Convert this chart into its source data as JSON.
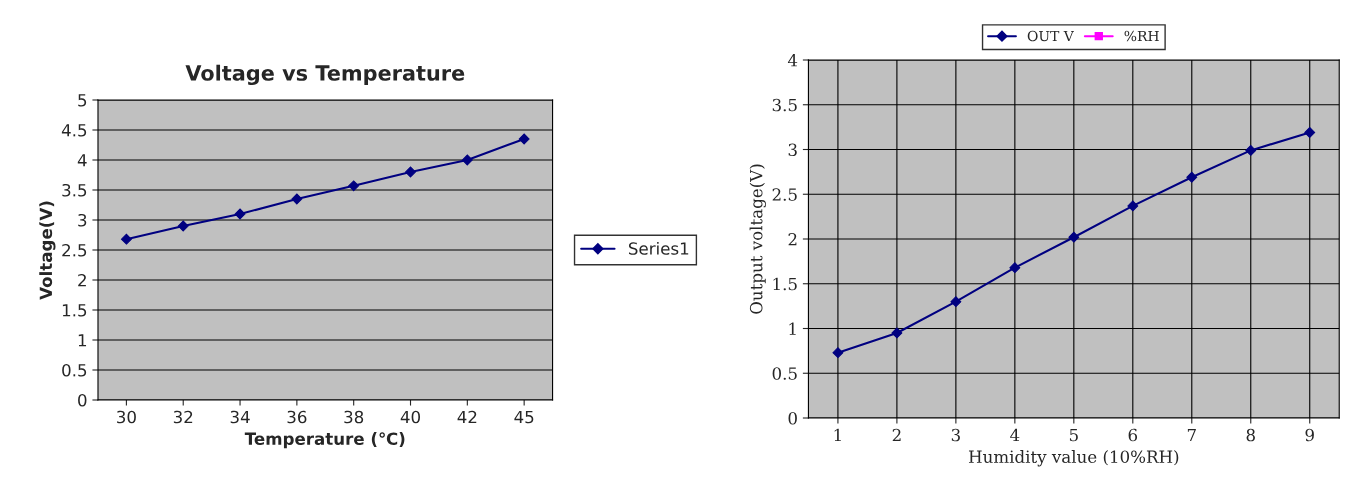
{
  "chart_data": [
    {
      "type": "line",
      "title": "Voltage vs Temperature",
      "xlabel": "Temperature (℃)",
      "ylabel": "Voltage(V)",
      "categories": [
        "30",
        "32",
        "34",
        "36",
        "38",
        "40",
        "42",
        "45"
      ],
      "series": [
        {
          "name": "Series1",
          "color": "#000080",
          "values": [
            2.68,
            2.9,
            3.1,
            3.35,
            3.57,
            3.8,
            4.0,
            4.35
          ]
        }
      ],
      "ylim": [
        0,
        5
      ],
      "yticks": [
        0,
        0.5,
        1,
        1.5,
        2,
        2.5,
        3,
        3.5,
        4,
        4.5,
        5
      ],
      "grid": "y",
      "legend": "right",
      "marker": "diamond",
      "line_style": "solid"
    },
    {
      "type": "line",
      "xlabel": "Humidity value (10%RH)",
      "ylabel": "Output voltage(V)",
      "categories": [
        "1",
        "2",
        "3",
        "4",
        "5",
        "6",
        "7",
        "8",
        "9"
      ],
      "series": [
        {
          "name": "OUT V",
          "color": "#000080",
          "values": [
            0.73,
            0.95,
            1.3,
            1.68,
            2.02,
            2.37,
            2.69,
            2.99,
            3.19
          ]
        },
        {
          "name": "%RH",
          "color": "#ff00ff",
          "marker": "square",
          "values": [
            null,
            null,
            null,
            null,
            null,
            null,
            null,
            null,
            null
          ]
        }
      ],
      "ylim": [
        0,
        4
      ],
      "yticks": [
        0,
        0.5,
        1,
        1.5,
        2,
        2.5,
        3,
        3.5,
        4
      ],
      "grid": true,
      "legend": "top",
      "marker": "diamond",
      "line_style": "solid"
    }
  ]
}
